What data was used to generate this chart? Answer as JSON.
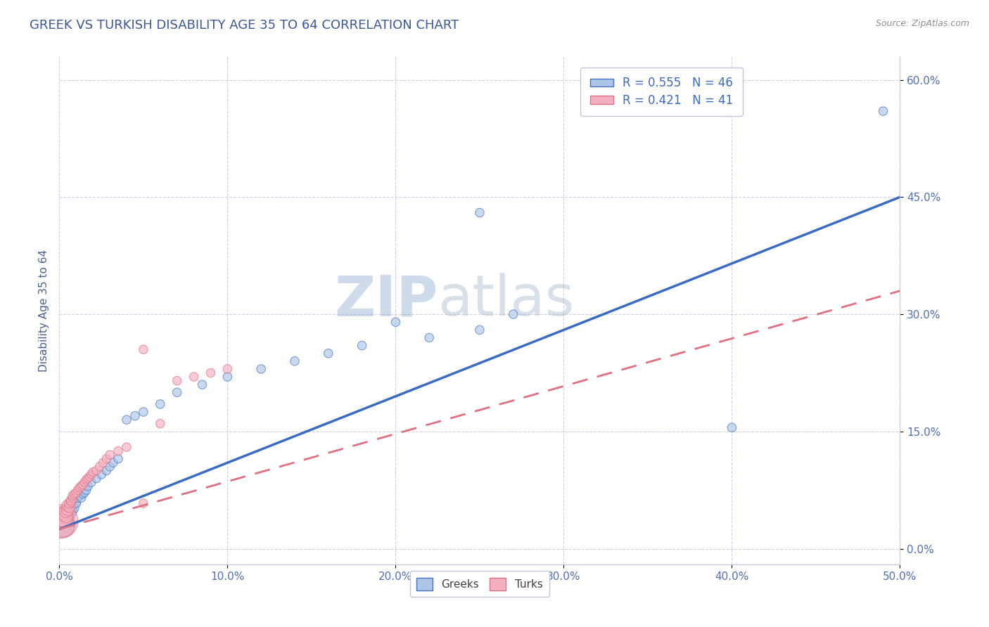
{
  "title": "GREEK VS TURKISH DISABILITY AGE 35 TO 64 CORRELATION CHART",
  "source": "Source: ZipAtlas.com",
  "xlim": [
    0,
    0.5
  ],
  "ylim": [
    -0.02,
    0.63
  ],
  "greek_R": 0.555,
  "greek_N": 46,
  "turkish_R": 0.421,
  "turkish_N": 41,
  "greek_color": "#adc6e8",
  "turkish_color": "#f2b0c0",
  "greek_edge_color": "#4472c4",
  "turkish_edge_color": "#e07080",
  "greek_line_color": "#3a6bc4",
  "turkish_line_color": "#e07080",
  "watermark": "ZIPatlas",
  "watermark_color": "#c5d8ec",
  "background_color": "#ffffff",
  "grid_color": "#c8cce0",
  "title_color": "#3a5898",
  "axis_label_color": "#4a6090",
  "tick_color": "#5070b0",
  "greek_line_x0": 0.0,
  "greek_line_y0": 0.025,
  "greek_line_x1": 0.5,
  "greek_line_y1": 0.45,
  "turkish_line_x0": 0.0,
  "turkish_line_y0": 0.025,
  "turkish_line_x1": 0.5,
  "turkish_line_y1": 0.33,
  "greek_scatter_x": [
    0.002,
    0.003,
    0.004,
    0.005,
    0.005,
    0.006,
    0.006,
    0.007,
    0.007,
    0.008,
    0.008,
    0.009,
    0.01,
    0.01,
    0.011,
    0.012,
    0.013,
    0.014,
    0.015,
    0.016,
    0.017,
    0.019,
    0.022,
    0.025,
    0.028,
    0.03,
    0.032,
    0.035,
    0.04,
    0.045,
    0.05,
    0.06,
    0.07,
    0.085,
    0.1,
    0.12,
    0.14,
    0.16,
    0.18,
    0.2,
    0.22,
    0.25,
    0.27,
    0.4,
    0.49,
    0.25
  ],
  "greek_scatter_y": [
    0.03,
    0.025,
    0.028,
    0.035,
    0.04,
    0.038,
    0.042,
    0.045,
    0.05,
    0.048,
    0.055,
    0.052,
    0.06,
    0.058,
    0.065,
    0.068,
    0.065,
    0.07,
    0.072,
    0.075,
    0.08,
    0.085,
    0.09,
    0.095,
    0.1,
    0.105,
    0.11,
    0.115,
    0.165,
    0.17,
    0.175,
    0.185,
    0.2,
    0.21,
    0.22,
    0.23,
    0.24,
    0.25,
    0.26,
    0.29,
    0.27,
    0.28,
    0.3,
    0.155,
    0.56,
    0.43
  ],
  "greek_scatter_sizes": [
    600,
    200,
    150,
    120,
    110,
    100,
    95,
    90,
    85,
    80,
    80,
    80,
    80,
    80,
    80,
    80,
    80,
    80,
    80,
    80,
    80,
    80,
    80,
    80,
    80,
    80,
    80,
    80,
    80,
    80,
    80,
    80,
    80,
    80,
    80,
    80,
    80,
    80,
    80,
    80,
    80,
    80,
    80,
    80,
    80,
    80
  ],
  "turkish_scatter_x": [
    0.001,
    0.002,
    0.002,
    0.003,
    0.003,
    0.004,
    0.004,
    0.005,
    0.005,
    0.006,
    0.006,
    0.007,
    0.007,
    0.008,
    0.008,
    0.009,
    0.01,
    0.011,
    0.012,
    0.013,
    0.014,
    0.015,
    0.016,
    0.017,
    0.018,
    0.019,
    0.02,
    0.022,
    0.024,
    0.026,
    0.028,
    0.03,
    0.035,
    0.04,
    0.05,
    0.06,
    0.07,
    0.08,
    0.09,
    0.1,
    0.05
  ],
  "turkish_scatter_y": [
    0.035,
    0.03,
    0.04,
    0.038,
    0.045,
    0.042,
    0.048,
    0.05,
    0.055,
    0.053,
    0.058,
    0.06,
    0.062,
    0.065,
    0.068,
    0.07,
    0.072,
    0.075,
    0.078,
    0.08,
    0.082,
    0.085,
    0.088,
    0.09,
    0.092,
    0.095,
    0.098,
    0.1,
    0.105,
    0.11,
    0.115,
    0.12,
    0.125,
    0.13,
    0.255,
    0.16,
    0.215,
    0.22,
    0.225,
    0.23,
    0.058
  ],
  "turkish_scatter_sizes": [
    1200,
    600,
    400,
    300,
    250,
    200,
    180,
    160,
    140,
    120,
    110,
    100,
    95,
    90,
    85,
    80,
    80,
    80,
    80,
    80,
    80,
    80,
    80,
    80,
    80,
    80,
    80,
    80,
    80,
    80,
    80,
    80,
    80,
    80,
    80,
    80,
    80,
    80,
    80,
    80,
    80
  ]
}
